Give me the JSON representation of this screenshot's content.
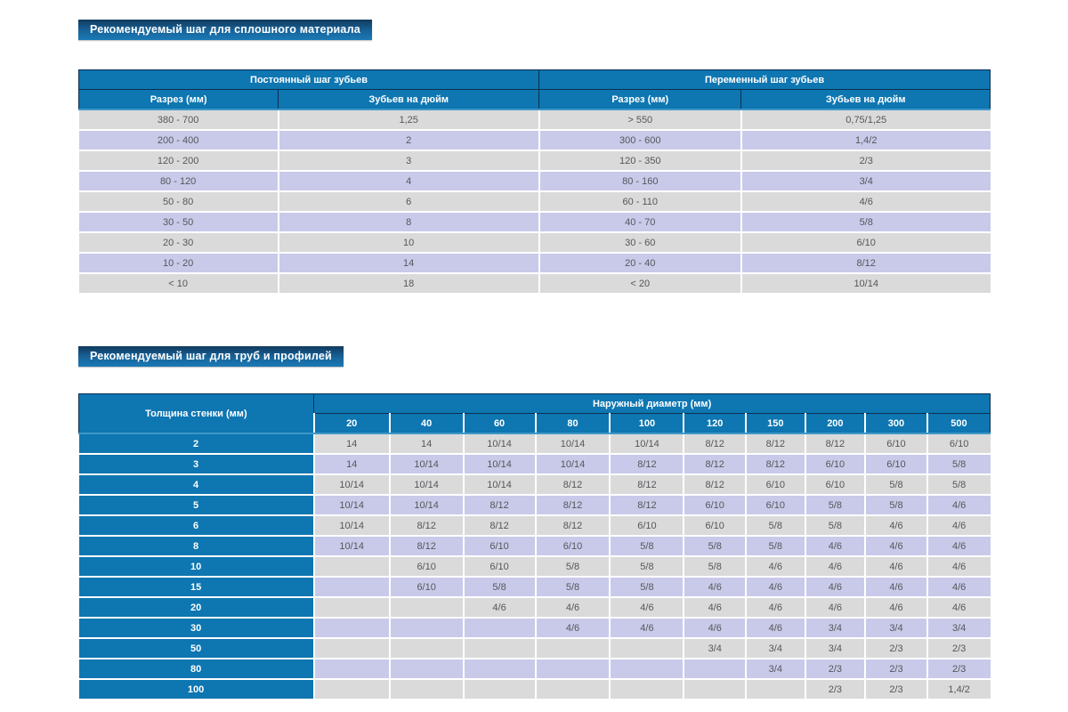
{
  "page": {
    "section1_title": "Рекомендуемый шаг для сплошного материала",
    "section2_title": "Рекомендуемый шаг для труб и профилей"
  },
  "colors": {
    "header_blue": "#0e76b1",
    "title_gradient_top": "#123a5d",
    "title_gradient_bottom": "#1b7ab5",
    "row_gray": "#dadada",
    "row_lavender": "#c9cae9",
    "header_separator_navy": "#0c3050",
    "under_header_teal": "#3e97c7",
    "cell_text": "#55565a"
  },
  "solid_table": {
    "groups": [
      {
        "label": "Постоянный шаг зубьев"
      },
      {
        "label": "Переменный шаг зубьев"
      }
    ],
    "columns": [
      "Разрез (мм)",
      "Зубьев на дюйм",
      "Разрез (мм)",
      "Зубьев на дюйм"
    ],
    "rows": [
      [
        "380 - 700",
        "1,25",
        "> 550",
        "0,75/1,25"
      ],
      [
        "200 - 400",
        "2",
        "300 - 600",
        "1,4/2"
      ],
      [
        "120 - 200",
        "3",
        "120 - 350",
        "2/3"
      ],
      [
        "80 - 120",
        "4",
        "80 - 160",
        "3/4"
      ],
      [
        "50 - 80",
        "6",
        "60 - 110",
        "4/6"
      ],
      [
        "30 - 50",
        "8",
        "40 - 70",
        "5/8"
      ],
      [
        "20 - 30",
        "10",
        "30 - 60",
        "6/10"
      ],
      [
        "10 - 20",
        "14",
        "20 - 40",
        "8/12"
      ],
      [
        "< 10",
        "18",
        "< 20",
        "10/14"
      ]
    ]
  },
  "pipe_table": {
    "corner_label": "Толщина стенки (мм)",
    "group_label": "Наружный диаметр (мм)",
    "columns": [
      "20",
      "40",
      "60",
      "80",
      "100",
      "120",
      "150",
      "200",
      "300",
      "500"
    ],
    "rows": [
      {
        "label": "2",
        "values": [
          "14",
          "14",
          "10/14",
          "10/14",
          "10/14",
          "8/12",
          "8/12",
          "8/12",
          "6/10",
          "6/10"
        ]
      },
      {
        "label": "3",
        "values": [
          "14",
          "10/14",
          "10/14",
          "10/14",
          "8/12",
          "8/12",
          "8/12",
          "6/10",
          "6/10",
          "5/8"
        ]
      },
      {
        "label": "4",
        "values": [
          "10/14",
          "10/14",
          "10/14",
          "8/12",
          "8/12",
          "8/12",
          "6/10",
          "6/10",
          "5/8",
          "5/8"
        ]
      },
      {
        "label": "5",
        "values": [
          "10/14",
          "10/14",
          "8/12",
          "8/12",
          "8/12",
          "6/10",
          "6/10",
          "5/8",
          "5/8",
          "4/6"
        ]
      },
      {
        "label": "6",
        "values": [
          "10/14",
          "8/12",
          "8/12",
          "8/12",
          "6/10",
          "6/10",
          "5/8",
          "5/8",
          "4/6",
          "4/6"
        ]
      },
      {
        "label": "8",
        "values": [
          "10/14",
          "8/12",
          "6/10",
          "6/10",
          "5/8",
          "5/8",
          "5/8",
          "4/6",
          "4/6",
          "4/6"
        ]
      },
      {
        "label": "10",
        "values": [
          "",
          "6/10",
          "6/10",
          "5/8",
          "5/8",
          "5/8",
          "4/6",
          "4/6",
          "4/6",
          "4/6"
        ]
      },
      {
        "label": "15",
        "values": [
          "",
          "6/10",
          "5/8",
          "5/8",
          "5/8",
          "4/6",
          "4/6",
          "4/6",
          "4/6",
          "4/6"
        ]
      },
      {
        "label": "20",
        "values": [
          "",
          "",
          "4/6",
          "4/6",
          "4/6",
          "4/6",
          "4/6",
          "4/6",
          "4/6",
          "4/6"
        ]
      },
      {
        "label": "30",
        "values": [
          "",
          "",
          "",
          "4/6",
          "4/6",
          "4/6",
          "4/6",
          "3/4",
          "3/4",
          "3/4"
        ]
      },
      {
        "label": "50",
        "values": [
          "",
          "",
          "",
          "",
          "",
          "3/4",
          "3/4",
          "3/4",
          "2/3",
          "2/3"
        ]
      },
      {
        "label": "80",
        "values": [
          "",
          "",
          "",
          "",
          "",
          "",
          "3/4",
          "2/3",
          "2/3",
          "2/3"
        ]
      },
      {
        "label": "100",
        "values": [
          "",
          "",
          "",
          "",
          "",
          "",
          "",
          "2/3",
          "2/3",
          "1,4/2"
        ]
      }
    ]
  }
}
